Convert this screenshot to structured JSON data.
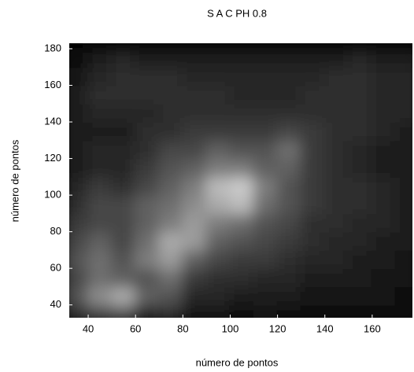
{
  "chart_data": {
    "type": "heatmap",
    "title": "S A C   PH 0.8",
    "x_label": "número de pontos",
    "y_label": "número de pontos",
    "colormap": "gray",
    "xlim": [
      32,
      177
    ],
    "ylim": [
      33,
      183
    ],
    "xticks": [
      40,
      60,
      80,
      100,
      120,
      140,
      160
    ],
    "yticks": [
      40,
      60,
      80,
      100,
      120,
      140,
      160,
      180
    ],
    "zlim": [
      0,
      100
    ],
    "x": [
      35,
      45,
      55,
      65,
      75,
      85,
      95,
      105,
      115,
      125,
      135,
      145,
      155,
      165,
      175
    ],
    "y": [
      35,
      45,
      55,
      65,
      75,
      85,
      95,
      105,
      115,
      125,
      135,
      145,
      155,
      165,
      175
    ],
    "z": [
      [
        30,
        40,
        45,
        25,
        30,
        15,
        15,
        10,
        15,
        10,
        10,
        10,
        10,
        10,
        10
      ],
      [
        45,
        65,
        75,
        50,
        45,
        25,
        25,
        20,
        20,
        20,
        15,
        15,
        15,
        15,
        10
      ],
      [
        40,
        55,
        50,
        45,
        55,
        35,
        30,
        30,
        25,
        25,
        20,
        20,
        20,
        15,
        15
      ],
      [
        45,
        55,
        45,
        60,
        70,
        50,
        40,
        35,
        35,
        30,
        25,
        25,
        20,
        20,
        15
      ],
      [
        40,
        50,
        40,
        55,
        75,
        70,
        50,
        45,
        40,
        35,
        30,
        25,
        25,
        20,
        20
      ],
      [
        35,
        40,
        40,
        50,
        60,
        70,
        60,
        55,
        45,
        40,
        30,
        30,
        25,
        25,
        20
      ],
      [
        30,
        40,
        40,
        50,
        55,
        65,
        75,
        80,
        55,
        45,
        35,
        30,
        30,
        25,
        20
      ],
      [
        25,
        35,
        30,
        40,
        50,
        60,
        80,
        85,
        60,
        45,
        35,
        30,
        30,
        25,
        20
      ],
      [
        20,
        25,
        25,
        35,
        45,
        50,
        60,
        60,
        50,
        50,
        35,
        30,
        25,
        20,
        20
      ],
      [
        20,
        25,
        25,
        30,
        40,
        40,
        50,
        45,
        45,
        55,
        35,
        30,
        25,
        20,
        20
      ],
      [
        20,
        20,
        20,
        30,
        30,
        35,
        35,
        35,
        35,
        40,
        35,
        30,
        30,
        25,
        20
      ],
      [
        20,
        25,
        25,
        25,
        30,
        30,
        30,
        30,
        30,
        30,
        30,
        30,
        30,
        25,
        25
      ],
      [
        20,
        30,
        30,
        30,
        30,
        30,
        30,
        25,
        25,
        25,
        30,
        30,
        30,
        25,
        25
      ],
      [
        15,
        25,
        30,
        30,
        30,
        25,
        25,
        25,
        25,
        25,
        25,
        30,
        30,
        25,
        25
      ],
      [
        10,
        20,
        25,
        20,
        20,
        20,
        20,
        20,
        20,
        20,
        20,
        20,
        25,
        20,
        20
      ]
    ]
  }
}
